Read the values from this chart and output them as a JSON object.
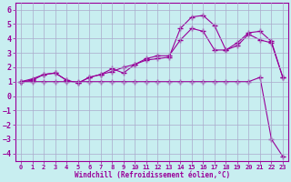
{
  "xlabel": "Windchill (Refroidissement éolien,°C)",
  "ylabel": "",
  "bg_color": "#c8eef0",
  "grid_color": "#aaaacc",
  "line_color": "#990099",
  "xlim": [
    -0.5,
    23.5
  ],
  "ylim": [
    -4.5,
    6.5
  ],
  "xticks": [
    0,
    1,
    2,
    3,
    4,
    5,
    6,
    7,
    8,
    9,
    10,
    11,
    12,
    13,
    14,
    15,
    16,
    17,
    18,
    19,
    20,
    21,
    22,
    23
  ],
  "yticks": [
    -4,
    -3,
    -2,
    -1,
    0,
    1,
    2,
    3,
    4,
    5,
    6
  ],
  "line1_x": [
    0,
    1,
    2,
    3,
    4,
    5,
    6,
    7,
    8,
    9,
    10,
    11,
    12,
    13,
    14,
    15,
    16,
    17,
    18,
    19,
    20,
    21,
    22,
    23
  ],
  "line1_y": [
    1.0,
    1.2,
    1.5,
    1.6,
    1.1,
    0.9,
    1.3,
    1.5,
    1.9,
    1.6,
    2.2,
    2.6,
    2.8,
    2.8,
    3.9,
    4.7,
    4.5,
    3.2,
    3.2,
    3.5,
    4.3,
    3.9,
    3.7,
    1.3
  ],
  "line2_x": [
    0,
    1,
    2,
    3,
    4,
    5,
    6,
    7,
    8,
    9,
    10,
    11,
    12,
    13,
    14,
    15,
    16,
    17,
    18,
    19,
    20,
    21,
    22,
    23
  ],
  "line2_y": [
    1.0,
    1.1,
    1.5,
    1.6,
    1.1,
    0.9,
    1.3,
    1.5,
    1.7,
    2.0,
    2.2,
    2.5,
    2.6,
    2.7,
    4.7,
    5.5,
    5.6,
    4.9,
    3.2,
    3.7,
    4.4,
    4.5,
    3.8,
    1.3
  ],
  "line3_x": [
    0,
    1,
    2,
    3,
    4,
    5,
    6,
    7,
    8,
    9,
    10,
    11,
    12,
    13,
    14,
    15,
    16,
    17,
    18,
    19,
    20,
    21,
    22,
    23
  ],
  "line3_y": [
    1.0,
    1.0,
    1.0,
    1.0,
    1.0,
    1.0,
    1.0,
    1.0,
    1.0,
    1.0,
    1.0,
    1.0,
    1.0,
    1.0,
    1.0,
    1.0,
    1.0,
    1.0,
    1.0,
    1.0,
    1.0,
    1.3,
    -3.0,
    -4.2
  ],
  "figsize": [
    3.2,
    2.0
  ],
  "dpi": 100
}
